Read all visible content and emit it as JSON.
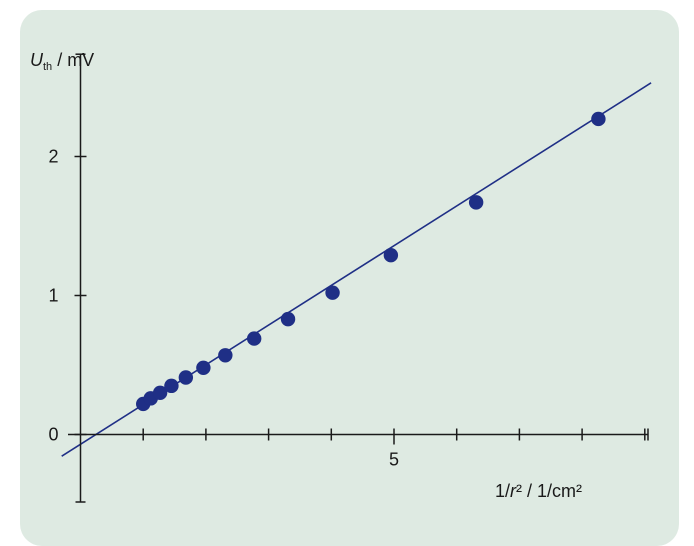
{
  "chart_data": {
    "type": "scatter",
    "ylabel_symbol": "U",
    "ylabel_subscript": "th",
    "ylabel_unit": " / mV",
    "xlabel_prefix": "1/",
    "xlabel_symbol": "r",
    "xlabel_suffix": "² / 1/cm²",
    "xlim": [
      -0.3,
      9.2
    ],
    "ylim": [
      -0.5,
      2.7
    ],
    "x_ticks": [
      1,
      2,
      3,
      4,
      5,
      6,
      7,
      8,
      9
    ],
    "x_tick_labels": [
      {
        "value": 5,
        "label": "5"
      }
    ],
    "y_ticks": [
      0,
      1,
      2
    ],
    "y_tick_labels": [
      "0",
      "1",
      "2"
    ],
    "grid": false,
    "series": [
      {
        "points": [
          [
            1.0,
            0.22
          ],
          [
            1.12,
            0.26
          ],
          [
            1.27,
            0.3
          ],
          [
            1.45,
            0.35
          ],
          [
            1.68,
            0.41
          ],
          [
            1.96,
            0.48
          ],
          [
            2.31,
            0.57
          ],
          [
            2.77,
            0.69
          ],
          [
            3.31,
            0.83
          ],
          [
            4.02,
            1.02
          ],
          [
            4.95,
            1.29
          ],
          [
            6.31,
            1.67
          ],
          [
            8.26,
            2.27
          ]
        ]
      }
    ],
    "fit_line": {
      "slope": 0.2857,
      "intercept": -0.07,
      "x_range": [
        -0.3,
        9.1
      ]
    },
    "colors": {
      "points": "#1f2f86",
      "line": "#1f2f86",
      "axes": "#1a1a1a",
      "background": "#deeae2"
    }
  }
}
